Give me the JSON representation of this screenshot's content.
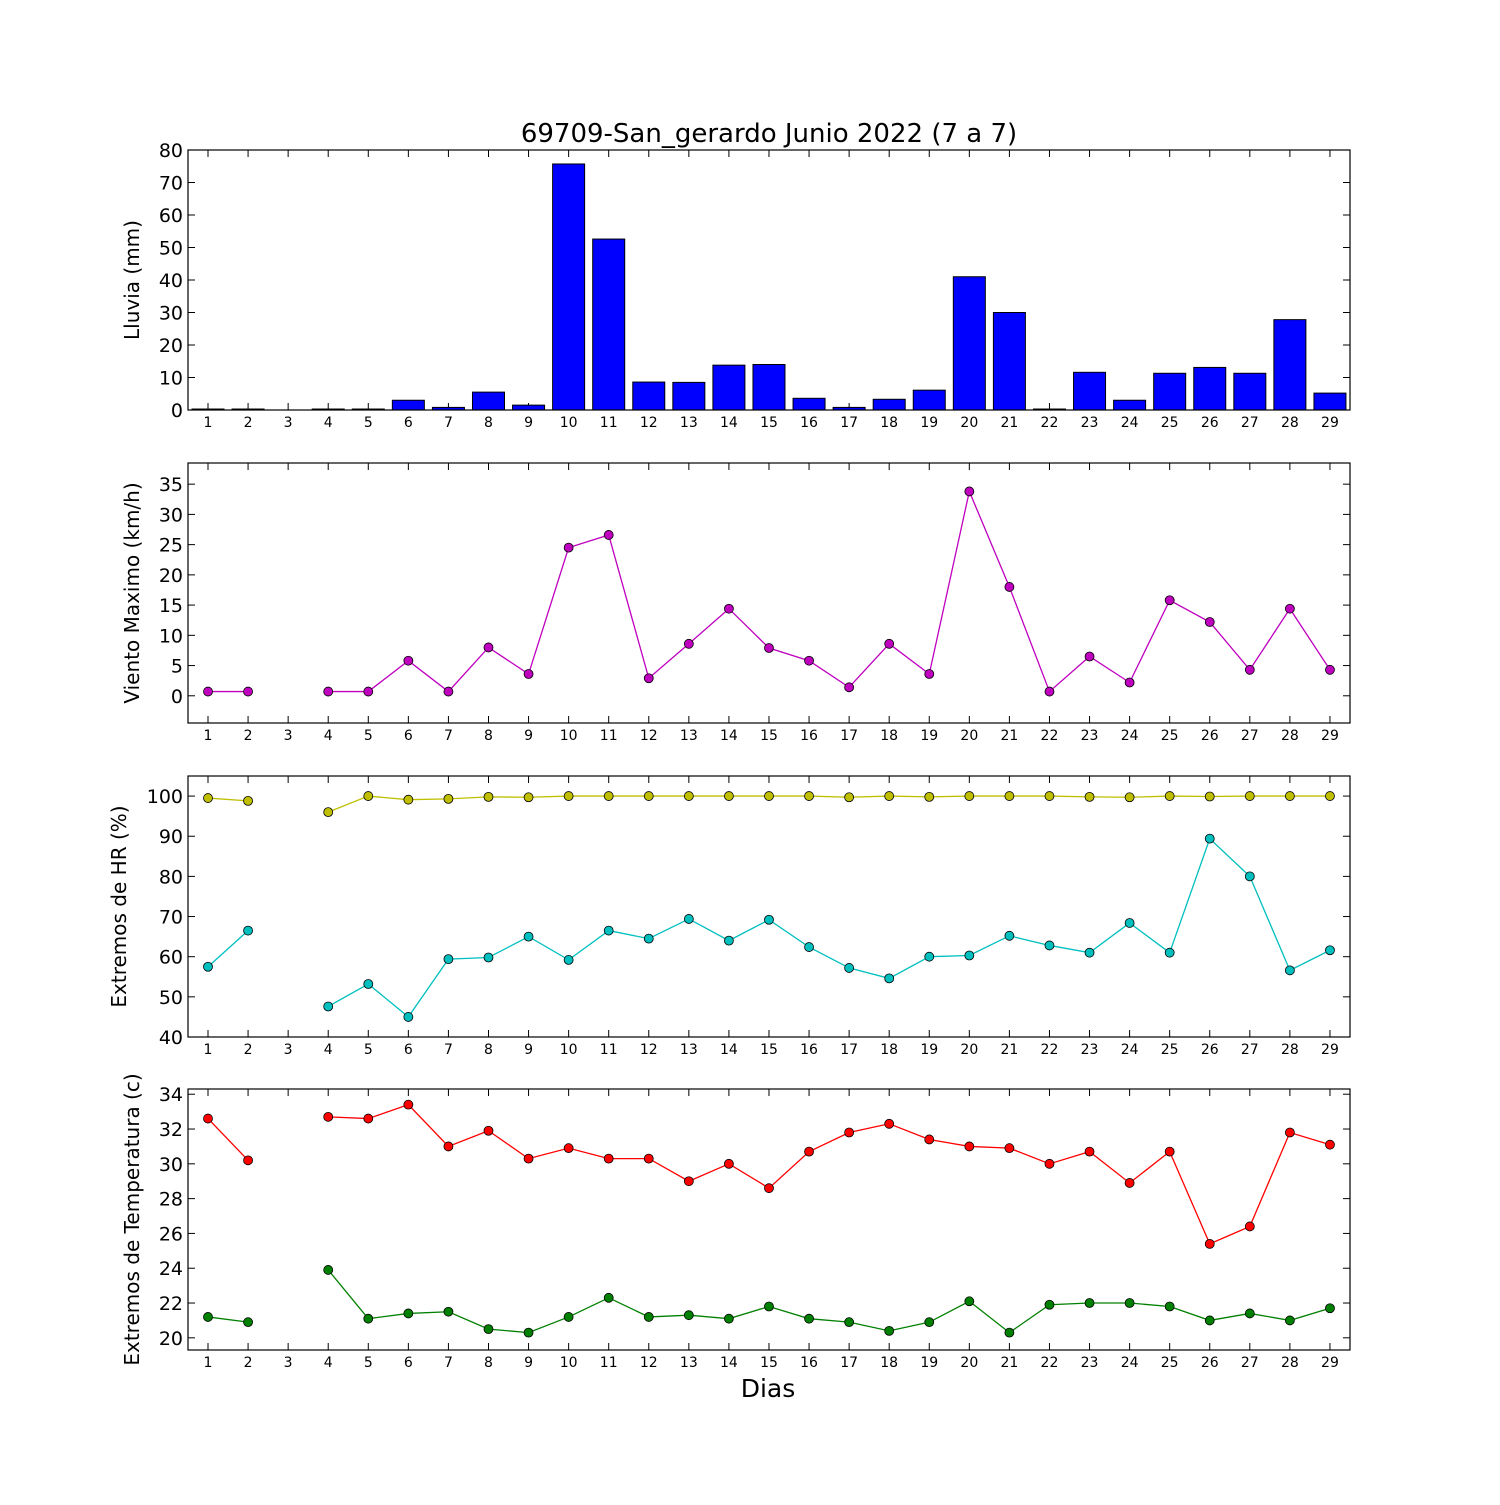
{
  "chart_data": [
    {
      "type": "bar",
      "title": "69709-San_gerardo Junio 2022  (7 a 7)",
      "ylabel": "Lluvia (mm)",
      "xlabel": "",
      "ylim": [
        0,
        80
      ],
      "yticks": [
        0,
        10,
        20,
        30,
        40,
        50,
        60,
        70,
        80
      ],
      "categories": [
        "1",
        "2",
        "3",
        "4",
        "5",
        "6",
        "7",
        "8",
        "9",
        "10",
        "11",
        "12",
        "13",
        "14",
        "15",
        "16",
        "17",
        "18",
        "19",
        "20",
        "21",
        "22",
        "23",
        "24",
        "25",
        "26",
        "27",
        "28",
        "29"
      ],
      "color": "#0000ff",
      "values": [
        0.3,
        0.3,
        0,
        0.3,
        0.3,
        3.0,
        0.8,
        5.5,
        1.5,
        75.7,
        52.6,
        8.6,
        8.5,
        13.8,
        14.0,
        3.6,
        0.8,
        3.3,
        6.1,
        41.0,
        30.0,
        0.3,
        11.6,
        3.0,
        11.3,
        13.1,
        11.3,
        27.8,
        5.2
      ]
    },
    {
      "type": "line",
      "ylabel": "Viento Maximo (km/h)",
      "xlabel": "",
      "ylim": [
        -4.5,
        38.5
      ],
      "yticks": [
        0,
        5,
        10,
        15,
        20,
        25,
        30,
        35
      ],
      "categories": [
        "1",
        "2",
        "3",
        "4",
        "5",
        "6",
        "7",
        "8",
        "9",
        "10",
        "11",
        "12",
        "13",
        "14",
        "15",
        "16",
        "17",
        "18",
        "19",
        "20",
        "21",
        "22",
        "23",
        "24",
        "25",
        "26",
        "27",
        "28",
        "29"
      ],
      "series": [
        {
          "color": "#bf00bf",
          "values": [
            0.7,
            0.7,
            null,
            0.7,
            0.7,
            5.8,
            0.7,
            8.0,
            3.6,
            24.5,
            26.6,
            2.9,
            8.6,
            14.4,
            7.9,
            5.8,
            1.4,
            8.6,
            3.6,
            33.8,
            18.0,
            0.7,
            6.5,
            2.2,
            15.8,
            12.2,
            4.3,
            14.4,
            4.3
          ]
        }
      ]
    },
    {
      "type": "line",
      "ylabel": "Extremos de HR (%)",
      "xlabel": "",
      "ylim": [
        40,
        105
      ],
      "yticks": [
        40,
        50,
        60,
        70,
        80,
        90,
        100
      ],
      "categories": [
        "1",
        "2",
        "3",
        "4",
        "5",
        "6",
        "7",
        "8",
        "9",
        "10",
        "11",
        "12",
        "13",
        "14",
        "15",
        "16",
        "17",
        "18",
        "19",
        "20",
        "21",
        "22",
        "23",
        "24",
        "25",
        "26",
        "27",
        "28",
        "29"
      ],
      "series": [
        {
          "color": "#bfbf00",
          "values": [
            99.5,
            98.8,
            null,
            96.0,
            100,
            99.1,
            99.3,
            99.8,
            99.7,
            100,
            100,
            100,
            100,
            100,
            100,
            100,
            99.7,
            100,
            99.8,
            100,
            100,
            100,
            99.8,
            99.7,
            100,
            99.9,
            100,
            100,
            100
          ]
        },
        {
          "color": "#00bfbf",
          "values": [
            57.5,
            66.5,
            null,
            47.6,
            53.2,
            45.0,
            59.4,
            59.8,
            65.0,
            59.2,
            66.5,
            64.5,
            69.4,
            64.0,
            69.2,
            62.4,
            57.2,
            54.6,
            60.0,
            60.3,
            65.2,
            62.8,
            61.0,
            68.4,
            61.0,
            89.4,
            80.0,
            56.6,
            61.6
          ]
        }
      ]
    },
    {
      "type": "line",
      "ylabel": "Extremos de Temperatura (c)",
      "xlabel": "Dias",
      "ylim": [
        19.3,
        34.3
      ],
      "yticks": [
        20,
        22,
        24,
        26,
        28,
        30,
        32,
        34
      ],
      "categories": [
        "1",
        "2",
        "3",
        "4",
        "5",
        "6",
        "7",
        "8",
        "9",
        "10",
        "11",
        "12",
        "13",
        "14",
        "15",
        "16",
        "17",
        "18",
        "19",
        "20",
        "21",
        "22",
        "23",
        "24",
        "25",
        "26",
        "27",
        "28",
        "29"
      ],
      "series": [
        {
          "color": "#ff0000",
          "values": [
            32.6,
            30.2,
            null,
            32.7,
            32.6,
            33.4,
            31.0,
            31.9,
            30.3,
            30.9,
            30.3,
            30.3,
            29.0,
            30.0,
            28.6,
            30.7,
            31.8,
            32.3,
            31.4,
            31.0,
            30.9,
            30.0,
            30.7,
            28.9,
            30.7,
            25.4,
            26.4,
            31.8,
            31.1
          ]
        },
        {
          "color": "#008000",
          "values": [
            21.2,
            20.9,
            null,
            23.9,
            21.1,
            21.4,
            21.5,
            20.5,
            20.3,
            21.2,
            22.3,
            21.2,
            21.3,
            21.1,
            21.8,
            21.1,
            20.9,
            20.4,
            20.9,
            22.1,
            20.3,
            21.9,
            22.0,
            22.0,
            21.8,
            21.0,
            21.4,
            21.0,
            21.7
          ]
        }
      ]
    }
  ]
}
